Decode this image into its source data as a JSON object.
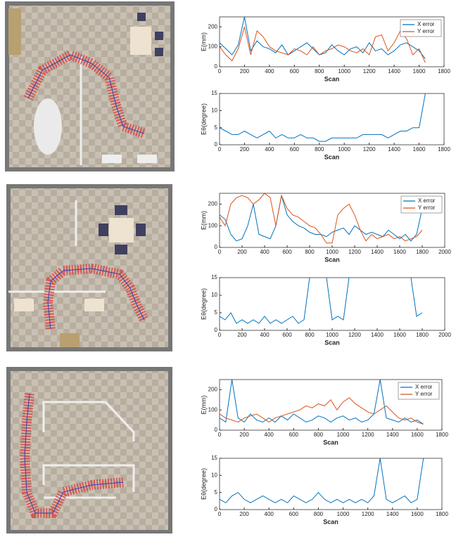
{
  "chart_data": [
    {
      "type": "line",
      "ylabel": "E(mm)",
      "xlabel": "Scan",
      "legend": "upper right",
      "grid": false,
      "xlim": [
        0,
        1800
      ],
      "xticks": [
        0,
        200,
        400,
        600,
        800,
        1000,
        1200,
        1400,
        1600,
        1800
      ],
      "ylim": [
        0,
        250
      ],
      "yticks": [
        0,
        100,
        200
      ],
      "x": [
        0,
        50,
        100,
        150,
        200,
        250,
        300,
        350,
        400,
        450,
        500,
        550,
        600,
        650,
        700,
        750,
        800,
        850,
        900,
        950,
        1000,
        1050,
        1100,
        1150,
        1200,
        1250,
        1300,
        1350,
        1400,
        1450,
        1500,
        1550,
        1600,
        1650
      ],
      "series": [
        {
          "name": "X error",
          "color": "#0072bd",
          "values": [
            120,
            90,
            60,
            110,
            250,
            80,
            130,
            100,
            90,
            70,
            110,
            60,
            80,
            100,
            120,
            90,
            60,
            70,
            110,
            80,
            60,
            90,
            100,
            70,
            120,
            80,
            90,
            60,
            80,
            110,
            120,
            100,
            80,
            40
          ]
        },
        {
          "name": "Y error",
          "color": "#d95319",
          "values": [
            100,
            60,
            30,
            90,
            200,
            60,
            180,
            150,
            100,
            80,
            70,
            60,
            90,
            80,
            60,
            100,
            60,
            80,
            90,
            110,
            100,
            80,
            70,
            90,
            60,
            150,
            160,
            80,
            120,
            180,
            140,
            60,
            90,
            20
          ]
        }
      ]
    },
    {
      "type": "line",
      "ylabel": "Eθ(degree)",
      "xlabel": "Scan",
      "grid": false,
      "xlim": [
        0,
        1800
      ],
      "xticks": [
        0,
        200,
        400,
        600,
        800,
        1000,
        1200,
        1400,
        1600,
        1800
      ],
      "ylim": [
        0,
        15
      ],
      "yticks": [
        0,
        5,
        10,
        15
      ],
      "x": [
        0,
        50,
        100,
        150,
        200,
        250,
        300,
        350,
        400,
        450,
        500,
        550,
        600,
        650,
        700,
        750,
        800,
        850,
        900,
        950,
        1000,
        1050,
        1100,
        1150,
        1200,
        1250,
        1300,
        1350,
        1400,
        1450,
        1500,
        1550,
        1600,
        1650
      ],
      "series": [
        {
          "color": "#0072bd",
          "values": [
            5,
            4,
            3,
            3,
            4,
            3,
            2,
            3,
            4,
            2,
            3,
            2,
            2,
            3,
            2,
            2,
            1,
            1,
            2,
            2,
            2,
            2,
            2,
            3,
            3,
            3,
            3,
            2,
            3,
            4,
            4,
            5,
            5,
            15
          ]
        }
      ]
    },
    {
      "type": "line",
      "ylabel": "E(mm)",
      "xlabel": "Scan",
      "legend": "upper right",
      "grid": false,
      "xlim": [
        0,
        2000
      ],
      "xticks": [
        0,
        200,
        400,
        600,
        800,
        1000,
        1200,
        1400,
        1600,
        1800,
        2000
      ],
      "ylim": [
        0,
        250
      ],
      "yticks": [
        0,
        100,
        200
      ],
      "x": [
        0,
        50,
        100,
        150,
        200,
        250,
        300,
        350,
        400,
        450,
        500,
        550,
        600,
        650,
        700,
        750,
        800,
        850,
        900,
        950,
        1000,
        1050,
        1100,
        1150,
        1200,
        1250,
        1300,
        1350,
        1400,
        1450,
        1500,
        1550,
        1600,
        1650,
        1700,
        1750,
        1800
      ],
      "series": [
        {
          "name": "X error",
          "color": "#0072bd",
          "values": [
            150,
            130,
            60,
            30,
            40,
            100,
            200,
            60,
            50,
            40,
            100,
            240,
            150,
            120,
            100,
            90,
            70,
            60,
            60,
            50,
            70,
            80,
            90,
            60,
            100,
            80,
            60,
            70,
            60,
            50,
            80,
            60,
            40,
            60,
            30,
            60,
            180
          ]
        },
        {
          "name": "Y error",
          "color": "#d95319",
          "values": [
            140,
            100,
            200,
            230,
            240,
            230,
            200,
            220,
            250,
            230,
            100,
            240,
            180,
            150,
            140,
            120,
            100,
            90,
            60,
            20,
            20,
            150,
            180,
            200,
            150,
            80,
            30,
            60,
            40,
            50,
            60,
            40,
            50,
            30,
            40,
            50,
            80
          ]
        }
      ]
    },
    {
      "type": "line",
      "ylabel": "Eθ(degree)",
      "xlabel": "Scan",
      "grid": false,
      "xlim": [
        0,
        2000
      ],
      "xticks": [
        0,
        200,
        400,
        600,
        800,
        1000,
        1200,
        1400,
        1600,
        1800,
        2000
      ],
      "ylim": [
        0,
        15
      ],
      "yticks": [
        0,
        5,
        10,
        15
      ],
      "x": [
        0,
        50,
        100,
        150,
        200,
        250,
        300,
        350,
        400,
        450,
        500,
        550,
        600,
        650,
        700,
        750,
        800,
        850,
        900,
        950,
        1000,
        1050,
        1100,
        1150,
        1200,
        1250,
        1300,
        1350,
        1400,
        1450,
        1500,
        1550,
        1600,
        1650,
        1700,
        1750,
        1800
      ],
      "series": [
        {
          "color": "#0072bd",
          "values": [
            4,
            3,
            5,
            2,
            3,
            2,
            3,
            2,
            4,
            2,
            3,
            2,
            3,
            4,
            2,
            3,
            15,
            null,
            null,
            15,
            3,
            4,
            3,
            15,
            null,
            null,
            null,
            null,
            null,
            null,
            null,
            null,
            null,
            null,
            15,
            4,
            5
          ]
        }
      ]
    },
    {
      "type": "line",
      "ylabel": "E(mm)",
      "xlabel": "Scan",
      "legend": "upper right",
      "grid": false,
      "xlim": [
        0,
        1800
      ],
      "xticks": [
        0,
        200,
        400,
        600,
        800,
        1000,
        1200,
        1400,
        1600,
        1800
      ],
      "ylim": [
        0,
        250
      ],
      "yticks": [
        0,
        100,
        200
      ],
      "x": [
        0,
        50,
        100,
        150,
        200,
        250,
        300,
        350,
        400,
        450,
        500,
        550,
        600,
        650,
        700,
        750,
        800,
        850,
        900,
        950,
        1000,
        1050,
        1100,
        1150,
        1200,
        1250,
        1300,
        1350,
        1400,
        1450,
        1500,
        1550,
        1600,
        1650
      ],
      "series": [
        {
          "name": "X error",
          "color": "#0072bd",
          "values": [
            60,
            40,
            250,
            60,
            40,
            80,
            50,
            40,
            60,
            40,
            70,
            50,
            80,
            60,
            40,
            50,
            70,
            60,
            40,
            60,
            70,
            50,
            60,
            40,
            50,
            80,
            250,
            60,
            50,
            40,
            60,
            40,
            50,
            30
          ]
        },
        {
          "name": "Y error",
          "color": "#d95319",
          "values": [
            80,
            60,
            50,
            40,
            60,
            70,
            80,
            60,
            40,
            60,
            70,
            80,
            90,
            100,
            120,
            110,
            130,
            120,
            150,
            100,
            140,
            160,
            130,
            110,
            90,
            80,
            100,
            120,
            90,
            60,
            50,
            60,
            40,
            30
          ]
        }
      ]
    },
    {
      "type": "line",
      "ylabel": "Eθ(degree)",
      "xlabel": "Scan",
      "grid": false,
      "xlim": [
        0,
        1800
      ],
      "xticks": [
        0,
        200,
        400,
        600,
        800,
        1000,
        1200,
        1400,
        1600,
        1800
      ],
      "ylim": [
        0,
        15
      ],
      "yticks": [
        0,
        5,
        10,
        15
      ],
      "x": [
        0,
        50,
        100,
        150,
        200,
        250,
        300,
        350,
        400,
        450,
        500,
        550,
        600,
        650,
        700,
        750,
        800,
        850,
        900,
        950,
        1000,
        1050,
        1100,
        1150,
        1200,
        1250,
        1300,
        1350,
        1400,
        1450,
        1500,
        1550,
        1600,
        1650
      ],
      "series": [
        {
          "color": "#0072bd",
          "values": [
            3,
            2,
            4,
            5,
            3,
            2,
            3,
            4,
            3,
            2,
            3,
            2,
            4,
            3,
            2,
            3,
            5,
            3,
            2,
            3,
            2,
            3,
            2,
            3,
            2,
            4,
            15,
            3,
            2,
            3,
            4,
            2,
            3,
            15
          ]
        }
      ]
    }
  ]
}
